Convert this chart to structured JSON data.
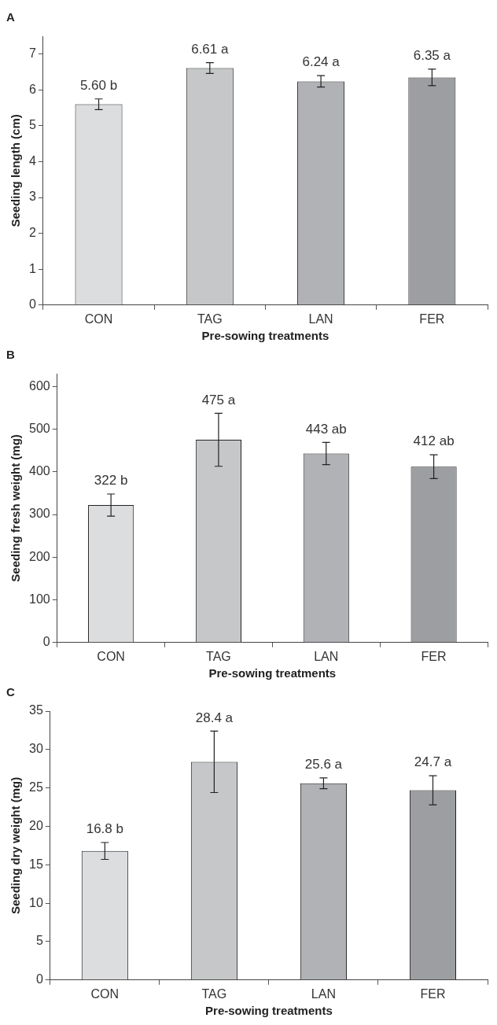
{
  "chart_data": [
    {
      "type": "bar",
      "title": "A",
      "xlabel": "Pre-sowing treatments",
      "ylabel": "Seeding length (cm)",
      "categories": [
        "CON",
        "TAG",
        "LAN",
        "FER"
      ],
      "values": [
        5.6,
        6.61,
        6.24,
        6.35
      ],
      "colors": [
        "#dcdddf",
        "#c6c7c9",
        "#b1b2b5",
        "#9d9ea1"
      ],
      "errors": [
        0.15,
        0.15,
        0.16,
        0.23
      ],
      "value_labels": [
        "5.60 b",
        "6.61 a",
        "6.24 a",
        "6.35 a"
      ],
      "ylim": [
        0,
        7.5
      ],
      "yticks": [
        0,
        1,
        2,
        3,
        4,
        5,
        6,
        7
      ],
      "legend": false,
      "grid": false
    },
    {
      "type": "bar",
      "title": "B",
      "xlabel": "Pre-sowing treatments",
      "ylabel": "Seeding fresh weight (mg)",
      "categories": [
        "CON",
        "TAG",
        "LAN",
        "FER"
      ],
      "values": [
        322,
        475,
        443,
        412
      ],
      "colors": [
        "#dcdddf",
        "#c6c7c9",
        "#b1b2b5",
        "#9d9ea1"
      ],
      "errors": [
        26,
        62,
        26,
        28
      ],
      "value_labels": [
        "322 b",
        "475 a",
        "443 ab",
        "412 ab"
      ],
      "ylim": [
        0,
        630
      ],
      "yticks": [
        0,
        100,
        200,
        300,
        400,
        500,
        600
      ],
      "legend": false,
      "grid": false
    },
    {
      "type": "bar",
      "title": "C",
      "xlabel": "Pre-sowing treatments",
      "ylabel": "Seeding dry weight (mg)",
      "categories": [
        "CON",
        "TAG",
        "LAN",
        "FER"
      ],
      "values": [
        16.8,
        28.4,
        25.6,
        24.7
      ],
      "colors": [
        "#dcdddf",
        "#c6c7c9",
        "#b1b2b5",
        "#9d9ea1"
      ],
      "errors": [
        1.1,
        4.0,
        0.7,
        1.9
      ],
      "value_labels": [
        "16.8 b",
        "28.4 a",
        "25.6 a",
        "24.7 a"
      ],
      "ylim": [
        0,
        35
      ],
      "yticks": [
        0,
        5,
        10,
        15,
        20,
        25,
        30,
        35
      ],
      "legend": false,
      "grid": false
    }
  ]
}
